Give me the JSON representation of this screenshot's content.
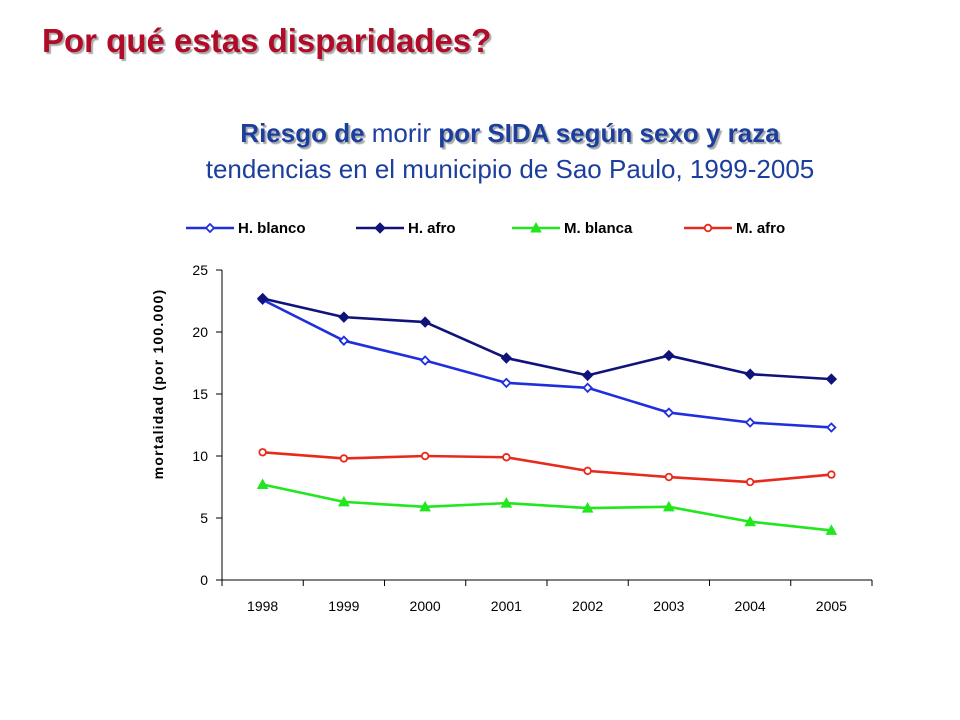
{
  "slide": {
    "title": "Por qué estas disparidades?",
    "subtitle": {
      "part1": "Riesgo de",
      "part2": " morir ",
      "part3": "por SIDA según sexo y raza",
      "line2": "tendencias en el municipio de Sao Paulo, 1999-2005"
    }
  },
  "colors": {
    "title": "#b00b28",
    "subtitle": "#1c3f9e"
  },
  "chart_data": {
    "type": "line",
    "x": [
      "1998",
      "1999",
      "2000",
      "2001",
      "2002",
      "2003",
      "2004",
      "2005"
    ],
    "ylabel": "mortalidad (por 100.000)",
    "xlabel": "",
    "ylim": [
      0,
      25
    ],
    "yticks": [
      0,
      5,
      10,
      15,
      20,
      25
    ],
    "legend_position": "top",
    "grid": false,
    "series": [
      {
        "name": "H. blanco",
        "color": "#1f2fdc",
        "marker": "diamond-open",
        "values": [
          22.6,
          19.3,
          17.7,
          15.9,
          15.5,
          13.5,
          12.7,
          12.3
        ]
      },
      {
        "name": "H. afro",
        "color": "#10137a",
        "marker": "diamond-filled",
        "values": [
          22.7,
          21.2,
          20.8,
          17.9,
          16.5,
          18.1,
          16.6,
          16.2
        ]
      },
      {
        "name": "M. blanca",
        "color": "#22e61e",
        "marker": "triangle",
        "values": [
          7.7,
          6.3,
          5.9,
          6.2,
          5.8,
          5.9,
          4.7,
          4.0
        ]
      },
      {
        "name": "M. afro",
        "color": "#e82a1c",
        "marker": "circle-open",
        "values": [
          10.3,
          9.8,
          10.0,
          9.9,
          8.8,
          8.3,
          7.9,
          8.5
        ]
      }
    ]
  }
}
